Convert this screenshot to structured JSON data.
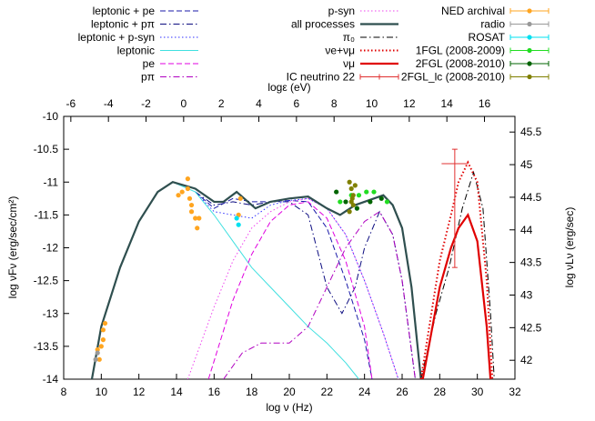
{
  "chart_data": {
    "type": "line",
    "xlabel": "log ν (Hz)",
    "ylabel": "log νFν (erg/sec/cm²)",
    "y2label": "log νLν (erg/sec)",
    "x2label": "logε (eV)",
    "xlim": [
      8,
      32
    ],
    "xticks": [
      8,
      10,
      12,
      14,
      16,
      18,
      20,
      22,
      24,
      26,
      28,
      30,
      32
    ],
    "ylim": [
      -14,
      -10
    ],
    "yticks": [
      -14,
      -13.5,
      -13,
      -12.5,
      -12,
      -11.5,
      -11,
      -10.5,
      -10
    ],
    "y2lim": [
      41.71,
      45.74
    ],
    "y2ticks": [
      42,
      42.5,
      43,
      43.5,
      44,
      44.5,
      45,
      45.5
    ],
    "x2lim": [
      -6.38,
      17.62
    ],
    "x2ticks": [
      -6,
      -4,
      -2,
      0,
      2,
      4,
      6,
      8,
      10,
      12,
      14,
      16
    ],
    "series": [
      {
        "name": "leptonic + pe",
        "kind": "line",
        "color": "#1a1aa8",
        "dash": "dashed",
        "width": 1,
        "x": [
          15,
          16,
          17,
          18,
          19,
          20,
          21,
          22,
          23,
          24,
          24.4
        ],
        "values": [
          -11.15,
          -11.4,
          -11.25,
          -11.3,
          -11.3,
          -11.28,
          -11.3,
          -11.7,
          -12.5,
          -13.4,
          -14
        ]
      },
      {
        "name": "leptonic + pπ",
        "kind": "line",
        "color": "#0c0c80",
        "dash": "dashdot",
        "width": 1,
        "x": [
          15,
          16,
          17,
          18,
          19,
          20,
          21,
          22,
          22.8,
          23.5,
          24,
          24.8,
          25.5,
          26,
          26.7
        ],
        "values": [
          -11.15,
          -11.35,
          -11.3,
          -11.35,
          -11.3,
          -11.3,
          -11.5,
          -12.6,
          -13.0,
          -12.6,
          -12.0,
          -11.45,
          -11.8,
          -12.5,
          -14
        ]
      },
      {
        "name": "leptonic + p-syn",
        "kind": "line",
        "color": "#3030ff",
        "dash": "dotted",
        "width": 1,
        "x": [
          15,
          16,
          17,
          18,
          19,
          20,
          21,
          22,
          23,
          24,
          25,
          25.8
        ],
        "values": [
          -11.15,
          -11.45,
          -11.5,
          -11.55,
          -11.35,
          -11.28,
          -11.25,
          -11.4,
          -11.8,
          -12.5,
          -13.3,
          -14
        ]
      },
      {
        "name": "leptonic",
        "kind": "line",
        "color": "#40e0e0",
        "dash": "solid",
        "width": 1,
        "x": [
          9.5,
          10,
          11,
          12,
          13,
          13.8,
          15,
          16,
          17,
          18,
          19,
          20,
          21,
          22,
          23,
          23.7
        ],
        "values": [
          -14,
          -13.2,
          -12.3,
          -11.6,
          -11.15,
          -11.0,
          -11.15,
          -11.5,
          -11.9,
          -12.3,
          -12.6,
          -12.9,
          -13.2,
          -13.45,
          -13.75,
          -14
        ]
      },
      {
        "name": "pe",
        "kind": "line",
        "color": "#e000e0",
        "dash": "dashed",
        "width": 1,
        "x": [
          15.7,
          17,
          18,
          19,
          20,
          21,
          22,
          23,
          24,
          24.4
        ],
        "values": [
          -14,
          -12.8,
          -12.1,
          -11.6,
          -11.35,
          -11.3,
          -11.55,
          -12.2,
          -13.2,
          -14
        ]
      },
      {
        "name": "pπ",
        "kind": "line",
        "color": "#b000c0",
        "dash": "dashdot",
        "width": 1,
        "x": [
          16.5,
          17.5,
          18.5,
          20,
          21,
          22,
          23,
          24,
          24.8,
          25.5,
          26,
          26.7
        ],
        "values": [
          -14,
          -13.6,
          -13.45,
          -13.45,
          -13.2,
          -12.6,
          -12.0,
          -11.6,
          -11.45,
          -11.8,
          -12.5,
          -14
        ]
      },
      {
        "name": "p-syn",
        "kind": "line",
        "color": "#ee44ee",
        "dash": "dotted",
        "width": 1,
        "x": [
          14.6,
          16,
          17,
          18,
          19,
          20,
          21,
          22,
          23,
          24,
          25,
          25.8
        ],
        "values": [
          -14,
          -12.9,
          -12.2,
          -11.7,
          -11.45,
          -11.3,
          -11.25,
          -11.4,
          -11.8,
          -12.5,
          -13.3,
          -14
        ]
      },
      {
        "name": "all processes",
        "kind": "line",
        "color": "#2f4f4f",
        "dash": "solid",
        "width": 2.2,
        "x": [
          9.5,
          10,
          11,
          12,
          13,
          13.8,
          15,
          16,
          16.5,
          17.2,
          18.2,
          19,
          20,
          21,
          22,
          22.7,
          23.5,
          24.5,
          25,
          25.5,
          26,
          26.5,
          27
        ],
        "values": [
          -14,
          -13.2,
          -12.3,
          -11.6,
          -11.15,
          -11.0,
          -11.1,
          -11.3,
          -11.3,
          -11.15,
          -11.4,
          -11.3,
          -11.25,
          -11.22,
          -11.4,
          -11.5,
          -11.35,
          -11.25,
          -11.2,
          -11.35,
          -11.7,
          -12.6,
          -14
        ]
      },
      {
        "name": "π₀",
        "kind": "line",
        "color": "#000000",
        "dash": "dashdot",
        "width": 1,
        "x": [
          27,
          27.8,
          28.5,
          29.2,
          29.8,
          30.3,
          30.7,
          30.9
        ],
        "values": [
          -14,
          -13.0,
          -12.3,
          -11.4,
          -10.85,
          -11.4,
          -13.0,
          -14
        ]
      },
      {
        "name": "νe+νμ",
        "kind": "line",
        "color": "#e00000",
        "dash": "dotted",
        "width": 2,
        "x": [
          27,
          28,
          28.6,
          29,
          29.5,
          30,
          30.5,
          30.8
        ],
        "values": [
          -14,
          -12.2,
          -11.5,
          -11.0,
          -10.7,
          -11.0,
          -12.5,
          -14
        ]
      },
      {
        "name": "νμ",
        "kind": "line",
        "color": "#e00000",
        "dash": "solid",
        "width": 2.2,
        "x": [
          27.1,
          28,
          28.6,
          29,
          29.5,
          30,
          30.5,
          30.7
        ],
        "values": [
          -14,
          -12.6,
          -12.0,
          -11.7,
          -11.5,
          -11.9,
          -13.2,
          -14
        ]
      },
      {
        "name": "IC neutrino 22",
        "kind": "errorbar",
        "color": "#e03030",
        "x": [
          28.8
        ],
        "values": [
          -10.72
        ],
        "xlow": [
          28.1
        ],
        "xhigh": [
          29.5
        ],
        "ylow": [
          -12.3
        ],
        "yhigh": [
          -10.5
        ]
      },
      {
        "name": "NED archival",
        "kind": "points",
        "color": "#ffa520",
        "x": [
          9.8,
          9.9,
          10.0,
          10.1,
          10.2,
          10.1,
          14.1,
          14.3,
          14.6,
          14.6,
          14.7,
          14.8,
          15.0,
          15.2,
          15.1,
          14.8,
          17.4,
          17.3
        ],
        "values": [
          -13.55,
          -13.7,
          -13.5,
          -13.25,
          -13.15,
          -13.4,
          -11.2,
          -11.15,
          -10.95,
          -11.1,
          -11.25,
          -11.35,
          -11.55,
          -11.55,
          -11.7,
          -11.45,
          -11.25,
          -11.5
        ]
      },
      {
        "name": "radio",
        "kind": "points",
        "color": "#999999",
        "x": [
          9.7,
          9.8
        ],
        "values": [
          -13.7,
          -13.6
        ]
      },
      {
        "name": "ROSAT",
        "kind": "points",
        "color": "#00e0f0",
        "x": [
          17.2,
          17.3
        ],
        "values": [
          -11.55,
          -11.65
        ]
      },
      {
        "name": "1FGL (2008-2009)",
        "kind": "points",
        "color": "#22dd22",
        "x": [
          22.7,
          23.3,
          23.7,
          24.1,
          24.5,
          25.2
        ],
        "values": [
          -11.3,
          -11.2,
          -11.2,
          -11.15,
          -11.15,
          -11.3
        ]
      },
      {
        "name": "2FGL (2008-2010)",
        "kind": "points",
        "color": "#006400",
        "x": [
          22.5,
          23.0,
          23.6,
          24.3,
          24.9
        ],
        "values": [
          -11.15,
          -11.3,
          -11.4,
          -11.3,
          -11.25
        ]
      },
      {
        "name": "2FGL_lc (2008-2010)",
        "kind": "points",
        "color": "#808000",
        "x": [
          23.2,
          23.3,
          23.4,
          23.3,
          23.4,
          23.2,
          23.5,
          23.35
        ],
        "values": [
          -11.0,
          -11.1,
          -11.2,
          -11.3,
          -11.35,
          -11.45,
          -11.05,
          -11.25
        ]
      }
    ]
  }
}
